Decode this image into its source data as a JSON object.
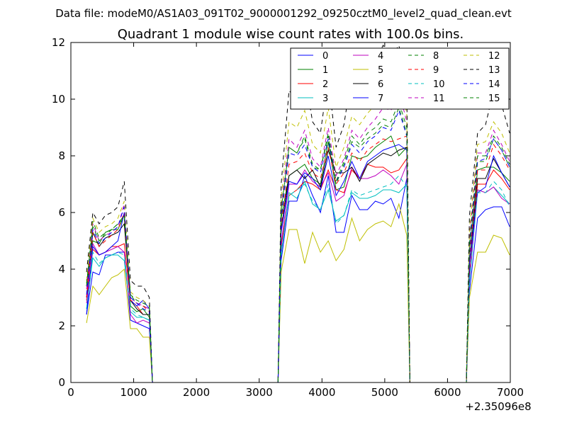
{
  "header": {
    "data_file": "Data file: modeM0/AS1A03_091T02_9000001292_09250cztM0_level2_quad_clean.evt"
  },
  "chart_data": {
    "type": "line",
    "title": "Quadrant 1 module wise count rates with 100.0s bins.",
    "xlabel": "",
    "ylabel": "",
    "x_offset_label": "+2.35096e8",
    "xlim": [
      0,
      7000
    ],
    "ylim": [
      0,
      12
    ],
    "xticks": [
      0,
      1000,
      2000,
      3000,
      4000,
      5000,
      6000,
      7000
    ],
    "yticks": [
      0,
      2,
      4,
      6,
      8,
      10,
      12
    ],
    "grid": false,
    "legend_position": "top-right",
    "series": [
      {
        "name": "0",
        "color": "#0000ff",
        "dash": false,
        "x_segments": [
          [
            250,
            1250
          ],
          [
            3350,
            5350
          ],
          [
            6350,
            6990
          ]
        ],
        "y_segments": [
          [
            2.4,
            3.9,
            3.8,
            4.5,
            4.5,
            4.6,
            4.6,
            2.2,
            2.1,
            2.0,
            1.9
          ],
          [
            4.3,
            6.4,
            6.4,
            7.3,
            6.6,
            6.0,
            7.3,
            5.3,
            5.3,
            6.6,
            6.1,
            6.1,
            6.4,
            6.3,
            6.5,
            5.8,
            7.2
          ],
          [
            3.2,
            5.8,
            6.1,
            6.2,
            6.2,
            5.5
          ]
        ]
      },
      {
        "name": "1",
        "color": "#008000",
        "dash": false,
        "x_segments": [
          [
            250,
            1250
          ],
          [
            3350,
            5350
          ],
          [
            6350,
            6990
          ]
        ],
        "y_segments": [
          [
            3.4,
            5.0,
            4.9,
            5.3,
            5.4,
            5.4,
            5.9,
            2.7,
            2.5,
            2.6,
            2.3
          ],
          [
            5.8,
            7.3,
            7.5,
            7.7,
            7.2,
            7.0,
            8.5,
            6.8,
            6.9,
            8.0,
            7.9,
            8.0,
            8.3,
            8.5,
            8.7,
            8.0,
            8.3
          ],
          [
            4.7,
            7.5,
            7.6,
            7.6,
            7.4,
            7.1
          ]
        ]
      },
      {
        "name": "2",
        "color": "#ff0000",
        "dash": false,
        "x_segments": [
          [
            250,
            1250
          ],
          [
            3350,
            5350
          ],
          [
            6350,
            6990
          ]
        ],
        "y_segments": [
          [
            2.9,
            4.7,
            4.5,
            4.6,
            4.8,
            4.8,
            4.9,
            2.9,
            2.7,
            2.4,
            2.4
          ],
          [
            4.8,
            6.6,
            6.8,
            7.1,
            7.0,
            6.8,
            7.5,
            6.8,
            6.7,
            7.5,
            7.2,
            7.7,
            7.6,
            7.6,
            7.4,
            7.5,
            7.9
          ],
          [
            3.8,
            7.0,
            7.0,
            7.5,
            7.2,
            6.8
          ]
        ]
      },
      {
        "name": "3",
        "color": "#00bfbf",
        "dash": false,
        "x_segments": [
          [
            250,
            1250
          ],
          [
            3350,
            5350
          ],
          [
            6350,
            6990
          ]
        ],
        "y_segments": [
          [
            2.6,
            4.4,
            4.1,
            4.4,
            4.5,
            4.5,
            4.3,
            2.5,
            2.3,
            2.3,
            2.2
          ],
          [
            4.5,
            6.7,
            6.5,
            7.1,
            6.3,
            6.1,
            6.8,
            5.7,
            5.9,
            6.7,
            6.5,
            6.5,
            6.6,
            6.8,
            6.8,
            6.7,
            7.0
          ],
          [
            3.5,
            6.8,
            6.7,
            6.9,
            6.6,
            6.3
          ]
        ]
      },
      {
        "name": "4",
        "color": "#bf00bf",
        "dash": false,
        "x_segments": [
          [
            250,
            1250
          ],
          [
            3350,
            5350
          ],
          [
            6350,
            6990
          ]
        ],
        "y_segments": [
          [
            2.8,
            4.9,
            4.5,
            4.6,
            4.7,
            4.8,
            4.6,
            2.4,
            2.1,
            2.2,
            2.1
          ],
          [
            4.9,
            7.0,
            7.0,
            7.5,
            7.1,
            6.9,
            7.4,
            6.4,
            6.6,
            7.6,
            7.2,
            7.2,
            7.3,
            7.5,
            7.3,
            7.0,
            7.7
          ],
          [
            3.7,
            6.8,
            6.7,
            6.9,
            6.5,
            6.3
          ]
        ]
      },
      {
        "name": "5",
        "color": "#bfbf00",
        "dash": false,
        "x_segments": [
          [
            250,
            1250
          ],
          [
            3350,
            5350
          ],
          [
            6350,
            6990
          ]
        ],
        "y_segments": [
          [
            2.1,
            3.4,
            3.1,
            3.4,
            3.7,
            3.8,
            4.0,
            1.9,
            1.9,
            1.6,
            1.6
          ],
          [
            3.9,
            5.4,
            5.4,
            4.2,
            5.3,
            4.6,
            5.0,
            4.3,
            4.7,
            5.8,
            5.0,
            5.4,
            5.6,
            5.7,
            5.5,
            6.3,
            5.2
          ],
          [
            3.0,
            4.6,
            4.6,
            5.2,
            5.1,
            4.5
          ]
        ]
      },
      {
        "name": "6",
        "color": "#000000",
        "dash": false,
        "x_segments": [
          [
            250,
            1250
          ],
          [
            3350,
            5350
          ],
          [
            6350,
            6990
          ]
        ],
        "y_segments": [
          [
            3.0,
            5.3,
            4.8,
            5.1,
            5.2,
            5.3,
            5.6,
            2.9,
            2.6,
            2.4,
            2.4
          ],
          [
            5.4,
            7.3,
            7.5,
            7.2,
            7.5,
            6.9,
            8.2,
            7.4,
            7.4,
            7.6,
            7.1,
            7.7,
            7.9,
            8.1,
            8.0,
            8.2,
            8.3
          ],
          [
            4.2,
            7.2,
            7.2,
            7.9,
            7.4,
            6.9
          ]
        ]
      },
      {
        "name": "7",
        "color": "#0000ff",
        "dash": false,
        "x_segments": [
          [
            250,
            1250
          ],
          [
            3350,
            5350
          ],
          [
            6350,
            6990
          ]
        ],
        "y_segments": [
          [
            2.4,
            4.8,
            4.5,
            4.6,
            4.8,
            5.0,
            6.0,
            2.9,
            2.7,
            2.9,
            2.6
          ],
          [
            5.3,
            7.1,
            7.0,
            7.4,
            7.2,
            6.8,
            8.0,
            6.6,
            7.1,
            7.8,
            7.2,
            7.8,
            8.0,
            8.2,
            8.3,
            8.4,
            8.2
          ],
          [
            4.2,
            6.7,
            6.9,
            8.0,
            7.4,
            6.9
          ]
        ]
      },
      {
        "name": "8",
        "color": "#008000",
        "dash": true,
        "x_segments": [
          [
            250,
            1250
          ],
          [
            3350,
            5350
          ],
          [
            6350,
            6990
          ]
        ],
        "y_segments": [
          [
            3.4,
            5.7,
            5.1,
            5.3,
            5.4,
            5.6,
            5.8,
            3.1,
            2.8,
            2.7,
            2.6
          ],
          [
            6.0,
            8.3,
            8.1,
            8.6,
            7.6,
            7.5,
            8.7,
            7.0,
            7.7,
            8.5,
            8.3,
            8.6,
            8.8,
            9.1,
            9.0,
            9.7,
            8.8
          ],
          [
            4.8,
            7.8,
            7.8,
            8.6,
            8.2,
            7.6
          ]
        ]
      },
      {
        "name": "9",
        "color": "#ff0000",
        "dash": true,
        "x_segments": [
          [
            250,
            1250
          ],
          [
            3350,
            5350
          ],
          [
            6350,
            6990
          ]
        ],
        "y_segments": [
          [
            3.0,
            5.3,
            4.8,
            5.0,
            5.2,
            5.4,
            6.0,
            2.9,
            2.8,
            2.7,
            2.5
          ],
          [
            5.5,
            7.7,
            7.8,
            8.1,
            7.4,
            7.2,
            8.3,
            7.0,
            7.4,
            8.1,
            7.8,
            8.2,
            8.4,
            8.6,
            8.5,
            8.6,
            8.7
          ],
          [
            4.5,
            7.5,
            7.5,
            8.4,
            8.0,
            7.5
          ]
        ]
      },
      {
        "name": "10",
        "color": "#00bfbf",
        "dash": true,
        "x_segments": [
          [
            250,
            1250
          ],
          [
            3350,
            5350
          ],
          [
            6350,
            6990
          ]
        ],
        "y_segments": [
          [
            2.6,
            4.6,
            4.2,
            4.4,
            4.5,
            4.6,
            4.5,
            2.6,
            2.4,
            2.3,
            2.2
          ],
          [
            4.6,
            6.6,
            6.8,
            7.0,
            6.4,
            6.1,
            7.0,
            5.6,
            5.9,
            6.8,
            6.6,
            6.7,
            6.8,
            6.9,
            7.0,
            7.3,
            6.9
          ],
          [
            3.6,
            6.7,
            6.7,
            7.1,
            6.8,
            6.2
          ]
        ]
      },
      {
        "name": "11",
        "color": "#bf00bf",
        "dash": true,
        "x_segments": [
          [
            250,
            1250
          ],
          [
            3350,
            5350
          ],
          [
            6350,
            6990
          ]
        ],
        "y_segments": [
          [
            3.3,
            5.6,
            5.0,
            5.2,
            5.3,
            5.5,
            6.3,
            3.0,
            2.8,
            2.7,
            2.6
          ],
          [
            6.2,
            8.6,
            8.3,
            8.9,
            7.9,
            7.6,
            9.0,
            7.3,
            7.9,
            8.9,
            8.6,
            9.0,
            9.3,
            9.7,
            9.6,
            10.3,
            9.2
          ],
          [
            5.1,
            8.1,
            8.1,
            8.9,
            8.4,
            7.8
          ]
        ]
      },
      {
        "name": "12",
        "color": "#bfbf00",
        "dash": true,
        "x_segments": [
          [
            250,
            1250
          ],
          [
            3350,
            5350
          ],
          [
            6350,
            6990
          ]
        ],
        "y_segments": [
          [
            3.6,
            5.8,
            5.3,
            5.5,
            5.6,
            5.8,
            6.4,
            3.2,
            3.0,
            2.9,
            2.7
          ],
          [
            6.5,
            9.2,
            9.0,
            9.6,
            8.4,
            8.1,
            9.7,
            7.6,
            8.3,
            9.4,
            9.1,
            9.5,
            9.8,
            10.2,
            9.9,
            10.8,
            9.5
          ],
          [
            5.4,
            8.4,
            8.5,
            9.2,
            8.8,
            8.1
          ]
        ]
      },
      {
        "name": "13",
        "color": "#000000",
        "dash": true,
        "x_segments": [
          [
            250,
            1250
          ],
          [
            3350,
            5350
          ],
          [
            6350,
            6990
          ]
        ],
        "y_segments": [
          [
            3.9,
            6.0,
            5.6,
            5.9,
            6.0,
            6.2,
            7.1,
            3.6,
            3.4,
            3.4,
            3.0
          ],
          [
            7.0,
            10.3,
            10.0,
            10.9,
            9.2,
            8.8,
            10.8,
            8.3,
            9.1,
            10.9,
            10.4,
            11.0,
            11.4,
            11.9,
            11.5,
            11.9,
            10.5
          ],
          [
            5.9,
            8.8,
            9.1,
            10.3,
            9.8,
            8.8
          ]
        ]
      },
      {
        "name": "14",
        "color": "#0000ff",
        "dash": true,
        "x_segments": [
          [
            250,
            1250
          ],
          [
            3350,
            5350
          ],
          [
            6350,
            6990
          ]
        ],
        "y_segments": [
          [
            3.1,
            5.4,
            4.9,
            5.1,
            5.3,
            5.5,
            6.2,
            3.0,
            2.8,
            2.6,
            2.5
          ],
          [
            5.8,
            8.1,
            8.0,
            8.4,
            7.6,
            7.4,
            8.6,
            7.1,
            7.6,
            8.4,
            8.1,
            8.5,
            8.7,
            9.0,
            8.9,
            9.6,
            8.7
          ],
          [
            4.7,
            7.8,
            7.9,
            8.6,
            8.2,
            7.6
          ]
        ]
      },
      {
        "name": "15",
        "color": "#008000",
        "dash": true,
        "x_segments": [
          [
            250,
            1250
          ],
          [
            3350,
            5350
          ],
          [
            6350,
            6990
          ]
        ],
        "y_segments": [
          [
            3.5,
            5.5,
            5.0,
            5.2,
            5.4,
            5.6,
            5.9,
            3.1,
            2.9,
            2.8,
            2.7
          ],
          [
            6.1,
            8.3,
            8.1,
            8.7,
            7.7,
            7.5,
            8.8,
            7.1,
            7.8,
            8.7,
            8.4,
            8.8,
            9.0,
            9.3,
            9.2,
            9.9,
            9.0
          ],
          [
            4.9,
            8.0,
            8.0,
            8.7,
            8.3,
            7.7
          ]
        ]
      }
    ]
  }
}
